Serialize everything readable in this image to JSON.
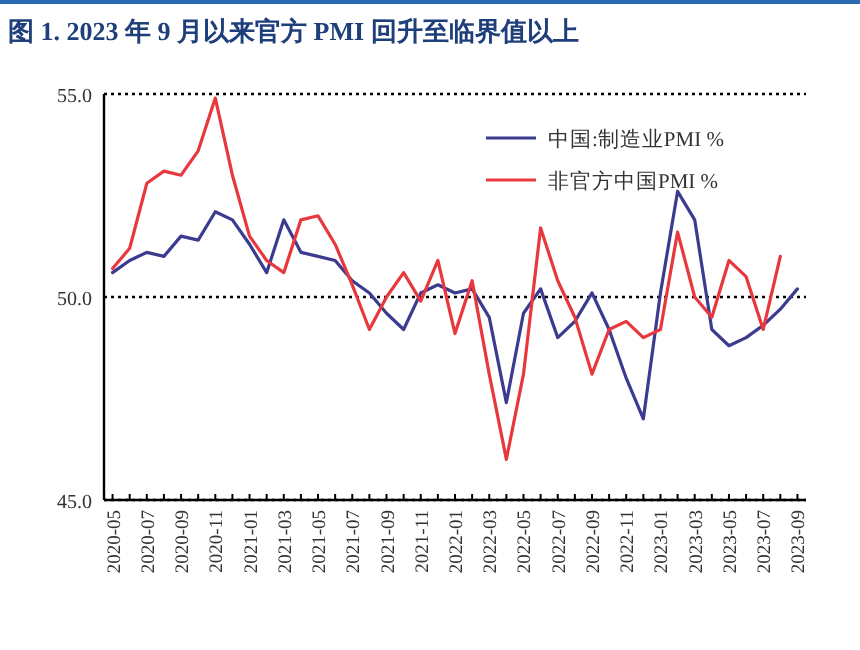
{
  "chart_data": {
    "type": "line",
    "title": "图 1. 2023 年 9 月以来官方 PMI 回升至临界值以上",
    "categories": [
      "2020-05",
      null,
      "2020-07",
      null,
      "2020-09",
      null,
      "2020-11",
      null,
      "2021-01",
      null,
      "2021-03",
      null,
      "2021-05",
      null,
      "2021-07",
      null,
      "2021-09",
      null,
      "2021-11",
      null,
      "2022-01",
      null,
      "2022-03",
      null,
      "2022-05",
      null,
      "2022-07",
      null,
      "2022-09",
      null,
      "2022-11",
      null,
      "2023-01",
      null,
      "2023-03",
      null,
      "2023-05",
      null,
      "2023-07",
      null,
      "2023-09"
    ],
    "series": [
      {
        "name": "中国:制造业PMI %",
        "color": "#3b3b8f",
        "values": [
          50.6,
          50.9,
          51.1,
          51.0,
          51.5,
          51.4,
          52.1,
          51.9,
          51.3,
          50.6,
          51.9,
          51.1,
          51.0,
          50.9,
          50.4,
          50.1,
          49.6,
          49.2,
          50.1,
          50.3,
          50.1,
          50.2,
          49.5,
          47.4,
          49.6,
          50.2,
          49.0,
          49.4,
          50.1,
          49.2,
          48.0,
          47.0,
          50.1,
          52.6,
          51.9,
          49.2,
          48.8,
          49.0,
          49.3,
          49.7,
          50.2
        ]
      },
      {
        "name": "非官方中国PMI %",
        "color": "#e8383d",
        "values": [
          50.7,
          51.2,
          52.8,
          53.1,
          53.0,
          53.6,
          54.9,
          53.0,
          51.5,
          50.9,
          50.6,
          51.9,
          52.0,
          51.3,
          50.3,
          49.2,
          50.0,
          50.6,
          49.9,
          50.9,
          49.1,
          50.4,
          48.1,
          46.0,
          48.1,
          51.7,
          50.4,
          49.5,
          48.1,
          49.2,
          49.4,
          49.0,
          49.2,
          51.6,
          50.0,
          49.5,
          50.9,
          50.5,
          49.2,
          51.0,
          null
        ]
      }
    ],
    "ylim": [
      45,
      55
    ],
    "yticks": [
      {
        "value": 45,
        "label": "45.0"
      },
      {
        "value": 50,
        "label": "50.0"
      },
      {
        "value": 55,
        "label": "55.0"
      }
    ],
    "grid": "y",
    "legend": "top right",
    "marker": "none",
    "line_style": "solid"
  }
}
